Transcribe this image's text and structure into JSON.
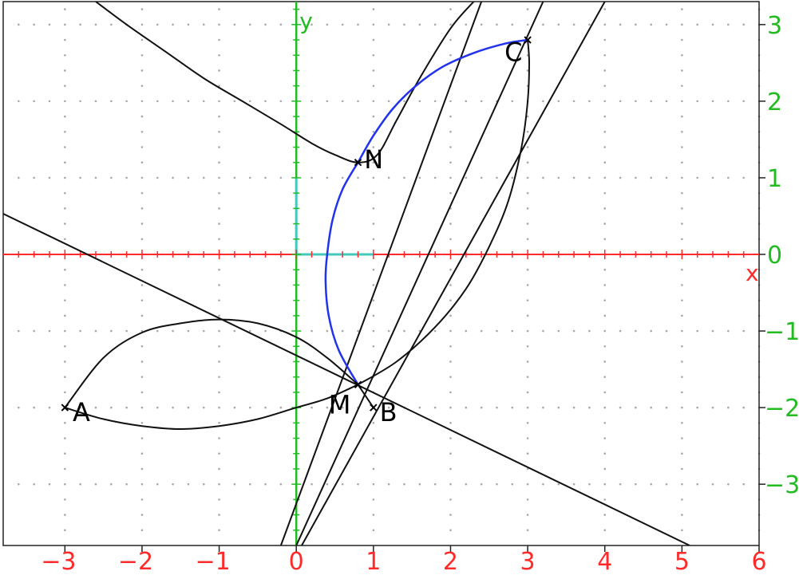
{
  "colors": {
    "x_axis": "#ff2a2a",
    "y_axis": "#22bb22",
    "unit_marker": "#44c8bc",
    "grid_dot": "#a8a8a8",
    "curve": "#111111",
    "locus": "#2233ee",
    "background": "#ffffff"
  },
  "axes": {
    "x_label": "x",
    "y_label": "y",
    "x_ticks": [
      "−3",
      "−2",
      "−1",
      "0",
      "1",
      "2",
      "3",
      "4",
      "5",
      "6"
    ],
    "y_ticks": [
      "3",
      "2",
      "1",
      "0",
      "−1",
      "−2",
      "−3"
    ]
  },
  "view": {
    "xmin": -3.8,
    "xmax": 6.0,
    "ymin": -3.8,
    "ymax": 3.3
  },
  "points": [
    {
      "label": "A",
      "x": -3,
      "y": -2,
      "label_dx": 0.1,
      "label_dy": -0.05
    },
    {
      "label": "B",
      "x": 1,
      "y": -2,
      "label_dx": 0.08,
      "label_dy": -0.05
    },
    {
      "label": "C",
      "x": 3,
      "y": 2.8,
      "label_dx": -0.3,
      "label_dy": -0.15
    },
    {
      "label": "M",
      "x": 0.8,
      "y": -1.7,
      "label_dx": -0.38,
      "label_dy": -0.25
    },
    {
      "label": "N",
      "x": 0.8,
      "y": 1.2,
      "label_dx": 0.08,
      "label_dy": 0.05
    }
  ],
  "lines": [
    {
      "p1": [
        -3.8,
        0.53
      ],
      "p2": [
        5.1,
        -3.8
      ],
      "name": "tangent-line-at-M"
    },
    {
      "p1": [
        -0.2,
        -3.8
      ],
      "p2": [
        2.4,
        3.3
      ],
      "name": "slanted-line-1"
    },
    {
      "p1": [
        0,
        -3.8
      ],
      "p2": [
        3.2,
        3.3
      ],
      "name": "slanted-line-2"
    },
    {
      "p1": [
        0.07,
        -3.8
      ],
      "p2": [
        4,
        3.3
      ],
      "name": "slanted-line-3"
    }
  ],
  "curves": [
    {
      "name": "arc-a-top",
      "points": [
        [
          -3,
          -2
        ],
        [
          -2.5,
          -1.35
        ],
        [
          -2,
          -1.02
        ],
        [
          -1.5,
          -0.9
        ],
        [
          -1,
          -0.85
        ],
        [
          -0.5,
          -0.9
        ],
        [
          0,
          -1.08
        ],
        [
          0.4,
          -1.35
        ],
        [
          0.8,
          -1.7
        ]
      ]
    },
    {
      "name": "arc-a-bottom",
      "points": [
        [
          -3,
          -2
        ],
        [
          -2.5,
          -2.15
        ],
        [
          -2,
          -2.24
        ],
        [
          -1.5,
          -2.28
        ],
        [
          -1,
          -2.24
        ],
        [
          -0.5,
          -2.15
        ],
        [
          0,
          -2
        ],
        [
          0.4,
          -1.88
        ],
        [
          0.8,
          -1.7
        ]
      ]
    },
    {
      "name": "arc-c-lower",
      "points": [
        [
          0.8,
          -1.7
        ],
        [
          1.3,
          -1.4
        ],
        [
          1.8,
          -0.95
        ],
        [
          2.2,
          -0.45
        ],
        [
          2.5,
          0.1
        ],
        [
          2.75,
          0.7
        ],
        [
          2.92,
          1.4
        ],
        [
          3.0,
          2.0
        ],
        [
          3.02,
          2.5
        ],
        [
          3.0,
          2.8
        ]
      ]
    },
    {
      "name": "curve-top",
      "points": [
        [
          -2.6,
          3.3
        ],
        [
          -2.2,
          3.0
        ],
        [
          -1.7,
          2.65
        ],
        [
          -1.2,
          2.3
        ],
        [
          -0.7,
          2.0
        ],
        [
          -0.2,
          1.7
        ],
        [
          0.2,
          1.45
        ],
        [
          0.5,
          1.3
        ],
        [
          0.8,
          1.2
        ],
        [
          1.05,
          1.3
        ],
        [
          1.3,
          1.75
        ],
        [
          1.6,
          2.3
        ],
        [
          2.0,
          2.95
        ],
        [
          2.3,
          3.3
        ]
      ]
    },
    {
      "name": "segment-mb",
      "points": [
        [
          0.8,
          -1.7
        ],
        [
          1.0,
          -2.0
        ]
      ]
    }
  ],
  "locus": [
    [
      0.8,
      1.2
    ],
    [
      0.6,
      0.85
    ],
    [
      0.47,
      0.45
    ],
    [
      0.4,
      0
    ],
    [
      0.38,
      -0.35
    ],
    [
      0.42,
      -0.8
    ],
    [
      0.55,
      -1.25
    ],
    [
      0.8,
      -1.7
    ]
  ],
  "locus_upper": [
    [
      0.8,
      1.2
    ],
    [
      1.0,
      1.55
    ],
    [
      1.25,
      1.9
    ],
    [
      1.55,
      2.2
    ],
    [
      1.9,
      2.45
    ],
    [
      2.3,
      2.63
    ],
    [
      2.7,
      2.75
    ],
    [
      3.0,
      2.8
    ]
  ]
}
